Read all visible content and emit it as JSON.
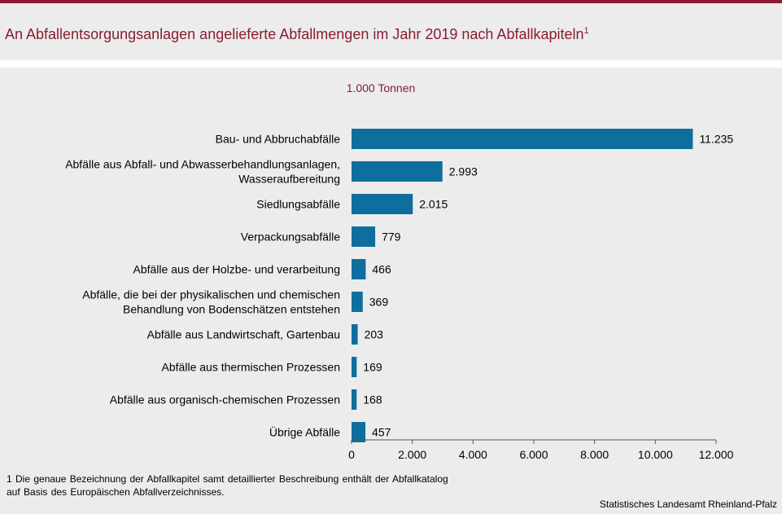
{
  "header": {
    "title": "An Abfallentsorgungsanlagen angelieferte Abfallmengen im Jahr 2019 nach Abfallkapiteln",
    "title_sup": "1"
  },
  "chart_data": {
    "type": "bar",
    "orientation": "horizontal",
    "unit_label": "1.000 Tonnen",
    "categories": [
      [
        "Bau- und Abbruchabfälle"
      ],
      [
        "Abfälle aus Abfall- und Abwasserbehandlungsanlagen,",
        "Wasseraufbereitung"
      ],
      [
        "Siedlungsabfälle"
      ],
      [
        "Verpackungsabfälle"
      ],
      [
        "Abfälle aus der Holzbe- und verarbeitung"
      ],
      [
        "Abfälle, die  bei der physikalischen und chemischen",
        "Behandlung von Bodenschätzen entstehen"
      ],
      [
        "Abfälle aus Landwirtschaft, Gartenbau"
      ],
      [
        "Abfälle aus thermischen Prozessen"
      ],
      [
        "Abfälle aus organisch-chemischen Prozessen"
      ],
      [
        "Übrige Abfälle"
      ]
    ],
    "values": [
      11235,
      2993,
      2015,
      779,
      466,
      369,
      203,
      169,
      168,
      457
    ],
    "value_labels": [
      "11.235",
      "2.993",
      "2.015",
      "779",
      "466",
      "369",
      "203",
      "169",
      "168",
      "457"
    ],
    "xlim": [
      0,
      12000
    ],
    "xticks": [
      0,
      2000,
      4000,
      6000,
      8000,
      10000,
      12000
    ],
    "xtick_labels": [
      "0",
      "2.000",
      "4.000",
      "6.000",
      "8.000",
      "10.000",
      "12.000"
    ],
    "bar_color": "#0f6e9e",
    "grid": false
  },
  "footer": {
    "footnote_line1": "1 Die genaue Bezeichnung der Abfallkapitel samt detaillierter Beschreibung enthält der Abfallkatalog",
    "footnote_line2": "auf Basis des Europäischen Abfallverzeichnisses.",
    "source": "Statistisches Landesamt Rheinland-Pfalz"
  },
  "colors": {
    "accent": "#8a1c33",
    "background": "#ececec"
  }
}
